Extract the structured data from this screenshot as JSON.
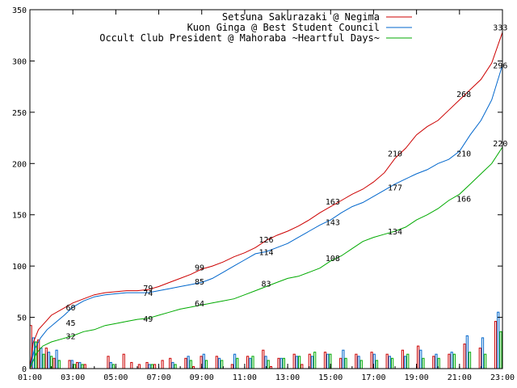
{
  "chart_data": {
    "type": "line",
    "x_ticks": [
      "01:00",
      "03:00",
      "05:00",
      "07:00",
      "09:00",
      "11:00",
      "13:00",
      "15:00",
      "17:00",
      "19:00",
      "21:00",
      "23:00"
    ],
    "x_range": [
      1,
      23
    ],
    "y_ticks": [
      0,
      50,
      100,
      150,
      200,
      250,
      300,
      350
    ],
    "ylim": [
      0,
      350
    ],
    "legend_position": "top-right",
    "series": [
      {
        "name": "Setsuna Sakurazaki @ Negima",
        "color": "#cc0000",
        "points": [
          [
            1.0,
            0
          ],
          [
            1.15,
            25
          ],
          [
            1.4,
            38
          ],
          [
            1.7,
            45
          ],
          [
            2.0,
            52
          ],
          [
            2.5,
            58
          ],
          [
            3.0,
            64
          ],
          [
            3.5,
            68
          ],
          [
            4.0,
            72
          ],
          [
            4.5,
            74
          ],
          [
            5.0,
            75
          ],
          [
            5.5,
            76
          ],
          [
            6.0,
            76
          ],
          [
            6.5,
            77
          ],
          [
            7.0,
            80
          ],
          [
            7.5,
            84
          ],
          [
            8.0,
            88
          ],
          [
            8.5,
            92
          ],
          [
            9.0,
            97
          ],
          [
            9.5,
            100
          ],
          [
            10.0,
            104
          ],
          [
            10.5,
            109
          ],
          [
            11.0,
            113
          ],
          [
            11.5,
            118
          ],
          [
            12.0,
            125
          ],
          [
            12.5,
            130
          ],
          [
            13.0,
            134
          ],
          [
            13.5,
            139
          ],
          [
            14.0,
            145
          ],
          [
            14.5,
            152
          ],
          [
            15.0,
            158
          ],
          [
            15.5,
            164
          ],
          [
            16.0,
            170
          ],
          [
            16.5,
            175
          ],
          [
            17.0,
            182
          ],
          [
            17.5,
            191
          ],
          [
            18.0,
            205
          ],
          [
            18.5,
            215
          ],
          [
            19.0,
            228
          ],
          [
            19.5,
            236
          ],
          [
            20.0,
            242
          ],
          [
            20.5,
            252
          ],
          [
            21.0,
            262
          ],
          [
            21.5,
            272
          ],
          [
            22.0,
            282
          ],
          [
            22.5,
            298
          ],
          [
            23.0,
            328
          ]
        ],
        "labels": [
          {
            "x": 2.9,
            "y": 60,
            "text": "60"
          },
          {
            "x": 6.5,
            "y": 79,
            "text": "79"
          },
          {
            "x": 8.9,
            "y": 99,
            "text": "99"
          },
          {
            "x": 12.0,
            "y": 126,
            "text": "126"
          },
          {
            "x": 15.1,
            "y": 163,
            "text": "163"
          },
          {
            "x": 18.0,
            "y": 210,
            "text": "210"
          },
          {
            "x": 21.2,
            "y": 268,
            "text": "268"
          },
          {
            "x": 22.9,
            "y": 333,
            "text": "333"
          }
        ],
        "bars": [
          42,
          28,
          20,
          10,
          0,
          8,
          6,
          4,
          0,
          0,
          12,
          0,
          14,
          6,
          4,
          6,
          4,
          8,
          10,
          0,
          10,
          2,
          12,
          0,
          12,
          0,
          4,
          0,
          12,
          0,
          18,
          2,
          10,
          0,
          14,
          4,
          14,
          0,
          16,
          0,
          10,
          0,
          14,
          0,
          16,
          0,
          14,
          0,
          18,
          0,
          22,
          0,
          12,
          0,
          14,
          0,
          24,
          0,
          20,
          0,
          46
        ]
      },
      {
        "name": "Kuon Ginga @ Best Student Council",
        "color": "#0066cc",
        "points": [
          [
            1.0,
            0
          ],
          [
            1.2,
            18
          ],
          [
            1.5,
            30
          ],
          [
            1.8,
            38
          ],
          [
            2.2,
            45
          ],
          [
            2.6,
            52
          ],
          [
            3.0,
            60
          ],
          [
            3.5,
            66
          ],
          [
            4.0,
            70
          ],
          [
            4.5,
            72
          ],
          [
            5.0,
            73
          ],
          [
            5.5,
            74
          ],
          [
            6.0,
            74
          ],
          [
            6.5,
            74
          ],
          [
            7.0,
            76
          ],
          [
            7.5,
            78
          ],
          [
            8.0,
            80
          ],
          [
            8.5,
            82
          ],
          [
            9.0,
            84
          ],
          [
            9.5,
            88
          ],
          [
            10.0,
            94
          ],
          [
            10.5,
            100
          ],
          [
            11.0,
            106
          ],
          [
            11.5,
            112
          ],
          [
            12.0,
            114
          ],
          [
            12.5,
            118
          ],
          [
            13.0,
            122
          ],
          [
            13.5,
            128
          ],
          [
            14.0,
            134
          ],
          [
            14.5,
            140
          ],
          [
            15.0,
            145
          ],
          [
            15.5,
            152
          ],
          [
            16.0,
            158
          ],
          [
            16.5,
            162
          ],
          [
            17.0,
            168
          ],
          [
            17.5,
            174
          ],
          [
            18.0,
            180
          ],
          [
            18.5,
            185
          ],
          [
            19.0,
            190
          ],
          [
            19.5,
            194
          ],
          [
            20.0,
            200
          ],
          [
            20.5,
            204
          ],
          [
            21.0,
            212
          ],
          [
            21.5,
            228
          ],
          [
            22.0,
            242
          ],
          [
            22.5,
            262
          ],
          [
            23.0,
            296
          ]
        ],
        "labels": [
          {
            "x": 2.9,
            "y": 45,
            "text": "45"
          },
          {
            "x": 6.5,
            "y": 74,
            "text": "74"
          },
          {
            "x": 8.9,
            "y": 85,
            "text": "85"
          },
          {
            "x": 12.0,
            "y": 114,
            "text": "114"
          },
          {
            "x": 15.1,
            "y": 143,
            "text": "143"
          },
          {
            "x": 18.0,
            "y": 177,
            "text": "177"
          },
          {
            "x": 21.2,
            "y": 210,
            "text": "210"
          },
          {
            "x": 22.9,
            "y": 296,
            "text": "296"
          }
        ],
        "bars": [
          30,
          20,
          16,
          18,
          0,
          8,
          6,
          0,
          0,
          0,
          6,
          0,
          0,
          0,
          0,
          4,
          0,
          0,
          6,
          0,
          12,
          0,
          14,
          0,
          10,
          0,
          14,
          0,
          10,
          0,
          12,
          0,
          10,
          0,
          12,
          0,
          12,
          0,
          14,
          0,
          18,
          0,
          12,
          0,
          14,
          0,
          12,
          0,
          12,
          0,
          18,
          0,
          14,
          0,
          16,
          0,
          32,
          0,
          30,
          0,
          55
        ]
      },
      {
        "name": "Occult Club President @ Mahoraba ~Heartful Days~",
        "color": "#00aa00",
        "points": [
          [
            1.0,
            0
          ],
          [
            1.3,
            15
          ],
          [
            1.6,
            22
          ],
          [
            2.0,
            26
          ],
          [
            2.5,
            29
          ],
          [
            3.0,
            32
          ],
          [
            3.5,
            36
          ],
          [
            4.0,
            38
          ],
          [
            4.5,
            42
          ],
          [
            5.0,
            44
          ],
          [
            5.5,
            46
          ],
          [
            6.0,
            48
          ],
          [
            6.5,
            49
          ],
          [
            7.0,
            52
          ],
          [
            7.5,
            55
          ],
          [
            8.0,
            58
          ],
          [
            8.5,
            60
          ],
          [
            9.0,
            62
          ],
          [
            9.5,
            64
          ],
          [
            10.0,
            66
          ],
          [
            10.5,
            68
          ],
          [
            11.0,
            72
          ],
          [
            11.5,
            76
          ],
          [
            12.0,
            80
          ],
          [
            12.5,
            84
          ],
          [
            13.0,
            88
          ],
          [
            13.5,
            90
          ],
          [
            14.0,
            94
          ],
          [
            14.5,
            98
          ],
          [
            15.0,
            105
          ],
          [
            15.5,
            110
          ],
          [
            16.0,
            117
          ],
          [
            16.5,
            124
          ],
          [
            17.0,
            128
          ],
          [
            17.5,
            131
          ],
          [
            18.0,
            134
          ],
          [
            18.5,
            138
          ],
          [
            19.0,
            145
          ],
          [
            19.5,
            150
          ],
          [
            20.0,
            156
          ],
          [
            20.5,
            164
          ],
          [
            21.0,
            170
          ],
          [
            21.5,
            180
          ],
          [
            22.0,
            190
          ],
          [
            22.5,
            200
          ],
          [
            23.0,
            216
          ]
        ],
        "labels": [
          {
            "x": 2.9,
            "y": 32,
            "text": "32"
          },
          {
            "x": 6.5,
            "y": 49,
            "text": "49"
          },
          {
            "x": 8.9,
            "y": 64,
            "text": "64"
          },
          {
            "x": 12.0,
            "y": 83,
            "text": "83"
          },
          {
            "x": 15.1,
            "y": 108,
            "text": "108"
          },
          {
            "x": 18.0,
            "y": 134,
            "text": "134"
          },
          {
            "x": 21.2,
            "y": 166,
            "text": "166"
          },
          {
            "x": 22.9,
            "y": 220,
            "text": "220"
          }
        ],
        "bars": [
          26,
          14,
          12,
          8,
          0,
          4,
          4,
          0,
          0,
          0,
          4,
          0,
          0,
          0,
          0,
          4,
          0,
          0,
          4,
          0,
          8,
          0,
          8,
          0,
          8,
          0,
          10,
          0,
          12,
          0,
          8,
          0,
          10,
          0,
          12,
          0,
          16,
          0,
          14,
          0,
          10,
          0,
          8,
          0,
          8,
          0,
          10,
          0,
          14,
          0,
          10,
          0,
          10,
          0,
          14,
          0,
          16,
          0,
          14,
          0,
          36
        ]
      }
    ]
  }
}
